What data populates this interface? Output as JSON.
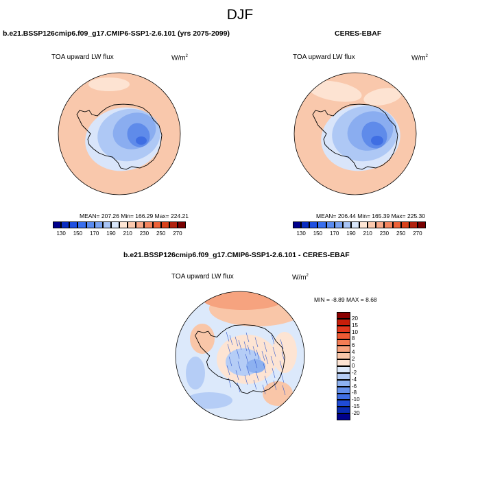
{
  "figure": {
    "title": "DJF"
  },
  "panels": [
    {
      "title": "b.e21.BSSP126cmip6.f09_g17.CMIP6-SSP1-2.6.101 (yrs 2075-2099)",
      "variable": "TOA upward LW flux",
      "units": "W/m",
      "units_exp": "2",
      "stats": "MEAN= 207.26  Min= 166.29  Max= 224.21"
    },
    {
      "title": "CERES-EBAF",
      "variable": "TOA upward LW flux",
      "units": "W/m",
      "units_exp": "2",
      "stats": "MEAN= 206.44  Min= 165.39  Max= 225.30"
    },
    {
      "title": "b.e21.BSSP126cmip6.f09_g17.CMIP6-SSP1-2.6.101 - CERES-EBAF",
      "variable": "TOA upward LW flux",
      "units": "W/m",
      "units_exp": "2",
      "stats": "MIN = -8.89 MAX =  8.68"
    }
  ],
  "chart_data": [
    {
      "type": "heatmap",
      "projection": "south polar stereographic",
      "title": "b.e21.BSSP126cmip6.f09_g17.CMIP6-SSP1-2.6.101 (yrs 2075-2099)",
      "variable": "TOA upward LW flux",
      "mean": 207.26,
      "min": 166.29,
      "max": 224.21,
      "colorbar": {
        "orientation": "horizontal",
        "tick_labels": [
          "130",
          "150",
          "170",
          "190",
          "210",
          "230",
          "250",
          "270"
        ],
        "colors": [
          "#00008b",
          "#0a2dc0",
          "#1f4fe0",
          "#3a6fee",
          "#5a8bf0",
          "#7aa3f2",
          "#a8c4f6",
          "#d8e6fb",
          "#fde5d4",
          "#fcc9ae",
          "#f9a888",
          "#f4855f",
          "#ec6138",
          "#d8411b",
          "#b0200d",
          "#780000"
        ]
      }
    },
    {
      "type": "heatmap",
      "projection": "south polar stereographic",
      "title": "CERES-EBAF",
      "variable": "TOA upward LW flux",
      "mean": 206.44,
      "min": 165.39,
      "max": 225.3,
      "colorbar": {
        "orientation": "horizontal",
        "tick_labels": [
          "130",
          "150",
          "170",
          "190",
          "210",
          "230",
          "250",
          "270"
        ],
        "colors": [
          "#00008b",
          "#0a2dc0",
          "#1f4fe0",
          "#3a6fee",
          "#5a8bf0",
          "#7aa3f2",
          "#a8c4f6",
          "#d8e6fb",
          "#fde5d4",
          "#fcc9ae",
          "#f9a888",
          "#f4855f",
          "#ec6138",
          "#d8411b",
          "#b0200d",
          "#780000"
        ]
      }
    },
    {
      "type": "heatmap",
      "projection": "south polar stereographic",
      "title": "b.e21.BSSP126cmip6.f09_g17.CMIP6-SSP1-2.6.101 - CERES-EBAF",
      "variable": "TOA upward LW flux",
      "min": -8.89,
      "max": 8.68,
      "colorbar": {
        "orientation": "vertical",
        "tick_labels": [
          "20",
          "15",
          "10",
          "8",
          "6",
          "4",
          "2",
          "0",
          "-2",
          "-4",
          "-6",
          "-8",
          "-10",
          "-15",
          "-20"
        ],
        "colors": [
          "#8b0000",
          "#c81e0a",
          "#e2381e",
          "#ef5a34",
          "#f37d55",
          "#f6a37f",
          "#f9c6a8",
          "#fde4d3",
          "#dce9fb",
          "#b5cdf6",
          "#8db1f0",
          "#6590ea",
          "#3f6ee3",
          "#1f4bd6",
          "#0a2bb0",
          "#00008b"
        ]
      }
    }
  ]
}
